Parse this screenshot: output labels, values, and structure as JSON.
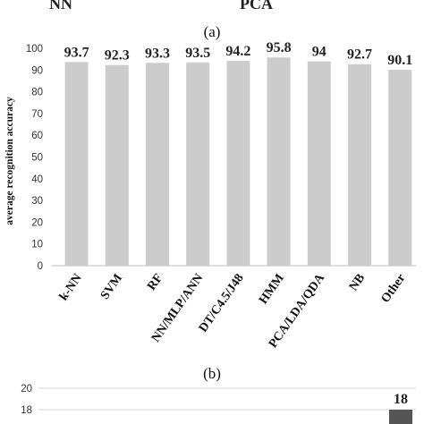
{
  "top_cut": {
    "left_text": "NN",
    "right_text": "PCA"
  },
  "panel_a_label": "(a)",
  "panel_b_label": "(b)",
  "chart_data": [
    {
      "type": "bar",
      "title": "",
      "xlabel": "",
      "ylabel": "average recognition accuracy",
      "ylim": [
        0,
        100
      ],
      "yticks": [
        0,
        10,
        20,
        30,
        40,
        50,
        60,
        70,
        80,
        90,
        100
      ],
      "categories": [
        "k-NN",
        "SVM",
        "RF",
        "NN/MLP/ANN",
        "DT/C4.5/J48",
        "HMM",
        "PCA/LDA/QDA",
        "NB",
        "Other"
      ],
      "values": [
        93.7,
        92.3,
        93.3,
        93.5,
        94.2,
        95.8,
        94,
        92.7,
        90.1
      ],
      "value_labels": [
        "93.7",
        "92.3",
        "93.3",
        "93.5",
        "94.2",
        "95.8",
        "94",
        "92.7",
        "90.1"
      ],
      "bar_color": "#cccccc",
      "grid": false
    },
    {
      "type": "bar",
      "title": "",
      "yticks": [
        18,
        20
      ],
      "visible_value_labels": [
        "18"
      ],
      "values": [
        18
      ],
      "bar_color": "#555555",
      "grid": true
    }
  ]
}
